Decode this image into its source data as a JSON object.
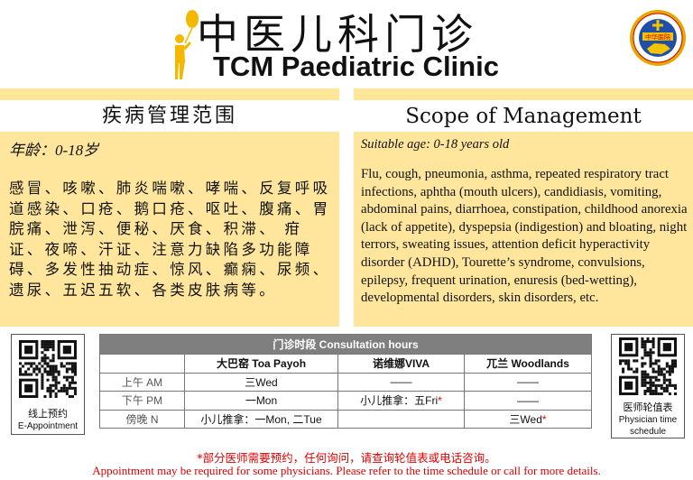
{
  "header": {
    "title_cn": "中医儿科门诊",
    "title_en": "TCM Paediatric Clinic",
    "logo_text": "CHUNG HWA MEDICAL INSTITUTION · SINGAPORE · 中华医院"
  },
  "left": {
    "heading": "疾病管理范围",
    "age": "年龄：0-18岁",
    "body": "感冒、咳嗽、肺炎喘嗽、哮喘、反复呼吸道感染、口疮、鹅口疮、呕吐、腹痛、胃脘痛、泄泻、便秘、厌食、积滞、 疳证、夜啼、汗证、注意力缺陷多功能障碍、多发性抽动症、惊风、癫痫、尿频、遗尿、五迟五软、各类皮肤病等。"
  },
  "right": {
    "heading": "Scope of Management",
    "age": "Suitable age: 0-18 years old",
    "body": "Flu, cough, pneumonia, asthma, repeated respiratory tract infections, aphtha (mouth ulcers), candidiasis, vomiting, abdominal pains, diarrhoea, constipation, childhood anorexia (lack of appetite), dyspepsia (indigestion) and bloating, night terrors, sweating issues, attention deficit hyperactivity disorder (ADHD), Tourette’s syndrome, convulsions, epilepsy, frequent urination, enuresis (bed-wetting), developmental disorders, skin disorders, etc."
  },
  "qr_left": {
    "label_cn": "线上预约",
    "label_en": "E-Appointment"
  },
  "qr_right": {
    "label_cn": "医师轮值表",
    "label_en": "Physician time schedule"
  },
  "table": {
    "title": "门诊时段 Consultation hours",
    "columns": [
      "",
      "大巴窑 Toa Payoh",
      "诺维娜VIVA",
      "兀兰 Woodlands"
    ],
    "rows": [
      {
        "label": "上午 AM",
        "cells": [
          "三Wed",
          "——",
          "——"
        ]
      },
      {
        "label": "下午 PM",
        "cells": [
          "一Mon",
          "小儿推拿：五Fri*",
          "——"
        ]
      },
      {
        "label": "傍晚  N",
        "cells": [
          "小儿推拿：一Mon, 二Tue",
          "",
          "三Wed*"
        ]
      }
    ]
  },
  "footer": {
    "line_cn": "*部分医师需要预约，任何询问，请查询轮值表或电话咨询。",
    "line_en": "Appointment may be required for some physicians. Please refer to the time schedule or call for more details."
  },
  "colors": {
    "panel": "#ffe69c",
    "accent_red": "#dd0000",
    "table_header": "#7f7f7f",
    "balloon": "#f5b800"
  }
}
